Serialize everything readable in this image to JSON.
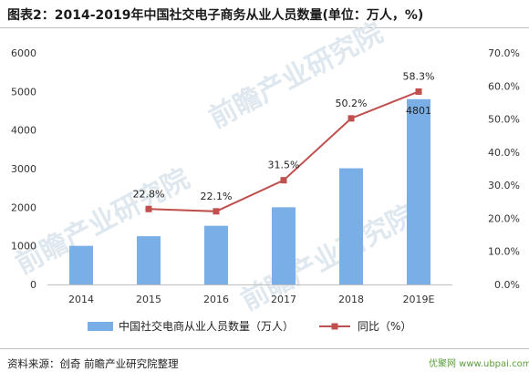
{
  "title": "图表2：2014-2019年中国社交电子商务从业人员数量(单位：万人，%)",
  "source": "资料来源：创奇 前瞻产业研究院整理",
  "watermark": "前瞻产业研究院",
  "corner_logo": "优聚网 www.ubpai.com",
  "colors": {
    "bar": "#7aaee6",
    "line": "#c0504d",
    "axis_text": "#333333",
    "grid": "#d9d9d9"
  },
  "chart_data": {
    "type": "bar",
    "categories": [
      "2014",
      "2015",
      "2016",
      "2017",
      "2018",
      "2019E"
    ],
    "series": [
      {
        "name": "中国社交电商从业人员数量（万人）",
        "type": "bar",
        "axis": "left",
        "values": [
          1000,
          1250,
          1520,
          2000,
          3010,
          4801
        ],
        "data_labels": [
          null,
          null,
          null,
          null,
          null,
          "4801"
        ]
      },
      {
        "name": "同比（%）",
        "type": "line",
        "axis": "right",
        "values": [
          null,
          22.8,
          22.1,
          31.5,
          50.2,
          58.3
        ],
        "data_labels": [
          null,
          "22.8%",
          "22.1%",
          "31.5%",
          "50.2%",
          "58.3%"
        ]
      }
    ],
    "ylim_left": [
      0,
      6000
    ],
    "yticks_left": [
      "0",
      "1000",
      "2000",
      "3000",
      "4000",
      "5000",
      "6000"
    ],
    "ylim_right": [
      0,
      70
    ],
    "yticks_right": [
      "0.0%",
      "10.0%",
      "20.0%",
      "30.0%",
      "40.0%",
      "50.0%",
      "60.0%",
      "70.0%"
    ],
    "grid": false,
    "legend": "bottom"
  }
}
